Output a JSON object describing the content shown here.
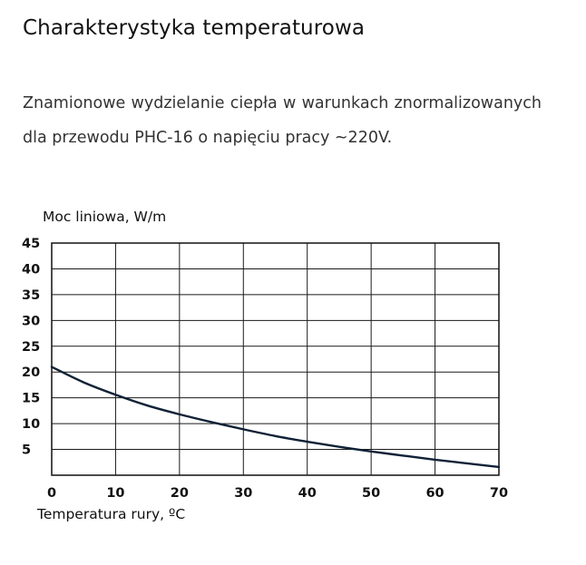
{
  "heading": "Charakterystyka temperaturowa",
  "description": "Znamionowe wydzielanie ciepła w warunkach znormalizowanych dla przewodu PHC-16 o napięciu pracy ~220V.",
  "chart_data": {
    "type": "line",
    "title": "",
    "ylabel": "Moc liniowa, W/m",
    "xlabel": "Temperatura rury, ºC",
    "xlim": [
      0,
      70
    ],
    "ylim": [
      0,
      45
    ],
    "xticks": [
      "0",
      "10",
      "20",
      "30",
      "40",
      "50",
      "60",
      "70"
    ],
    "yticks": [
      "45",
      "40",
      "35",
      "30",
      "25",
      "20",
      "15",
      "10",
      "5"
    ],
    "grid": true,
    "series": [
      {
        "name": "PHC-16",
        "color": "#0f2136",
        "x": [
          0,
          5,
          10,
          15,
          20,
          25,
          30,
          35,
          40,
          45,
          50,
          55,
          60,
          65,
          70
        ],
        "y": [
          21,
          18,
          15.6,
          13.5,
          11.8,
          10.3,
          8.9,
          7.6,
          6.5,
          5.5,
          4.6,
          3.8,
          3.0,
          2.3,
          1.6
        ]
      }
    ]
  }
}
